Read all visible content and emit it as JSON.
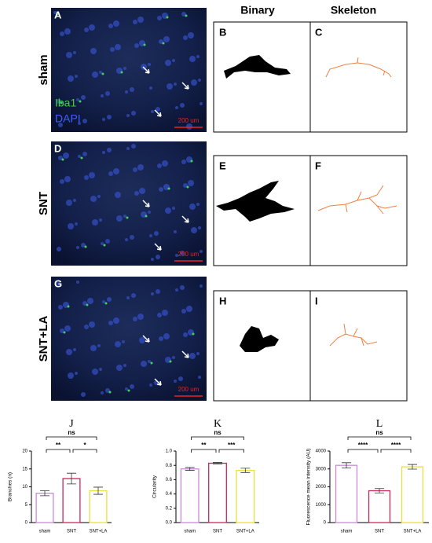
{
  "headers": [
    "Binary",
    "Skeleton"
  ],
  "rows": [
    {
      "label": "sham",
      "image_letter": "A",
      "binary_letter": "B",
      "skeleton_letter": "C"
    },
    {
      "label": "SNT",
      "image_letter": "D",
      "binary_letter": "E",
      "skeleton_letter": "F"
    },
    {
      "label": "SNT+LA",
      "image_letter": "G",
      "binary_letter": "H",
      "skeleton_letter": "I"
    }
  ],
  "stain_legend": [
    "Iba1",
    "DAPI"
  ],
  "scale_bar": "200 um",
  "chart_data": [
    {
      "type": "bar",
      "title": "J",
      "ylabel": "Branches (n)",
      "categories": [
        "sham",
        "SNT",
        "SNT+LA"
      ],
      "values": [
        8.2,
        12.3,
        8.9
      ],
      "errors": [
        0.7,
        1.5,
        1.0
      ],
      "colors": [
        "#c98ad8",
        "#c8285a",
        "#e8e040"
      ],
      "ylim": [
        0,
        20
      ],
      "yticks": [
        0,
        5,
        10,
        15,
        20
      ],
      "annotations": [
        "**",
        "*",
        "ns"
      ]
    },
    {
      "type": "bar",
      "title": "K",
      "ylabel": "Circularity",
      "categories": [
        "sham",
        "SNT",
        "SNT+LA"
      ],
      "values": [
        0.75,
        0.83,
        0.73
      ],
      "errors": [
        0.02,
        0.01,
        0.03
      ],
      "colors": [
        "#c98ad8",
        "#c8285a",
        "#e8e040"
      ],
      "ylim": [
        0,
        1.0
      ],
      "yticks": [
        {
          "value": 0,
          "label": "0.0"
        },
        0.2,
        0.4,
        0.6,
        0.8,
        {
          "value": 1.0,
          "label": "1.0"
        }
      ],
      "annotations": [
        "**",
        "***",
        "ns"
      ]
    },
    {
      "type": "bar",
      "title": "L",
      "ylabel": "Fluorescence mean intensity (AU)",
      "categories": [
        "sham",
        "SNT",
        "SNT+LA"
      ],
      "values": [
        3200,
        1780,
        3120
      ],
      "errors": [
        150,
        120,
        130
      ],
      "colors": [
        "#c98ad8",
        "#c8285a",
        "#e8e040"
      ],
      "ylim": [
        0,
        4000
      ],
      "yticks": [
        0,
        1000,
        2000,
        3000,
        4000
      ],
      "annotations": [
        "****",
        "****",
        "ns"
      ]
    }
  ]
}
